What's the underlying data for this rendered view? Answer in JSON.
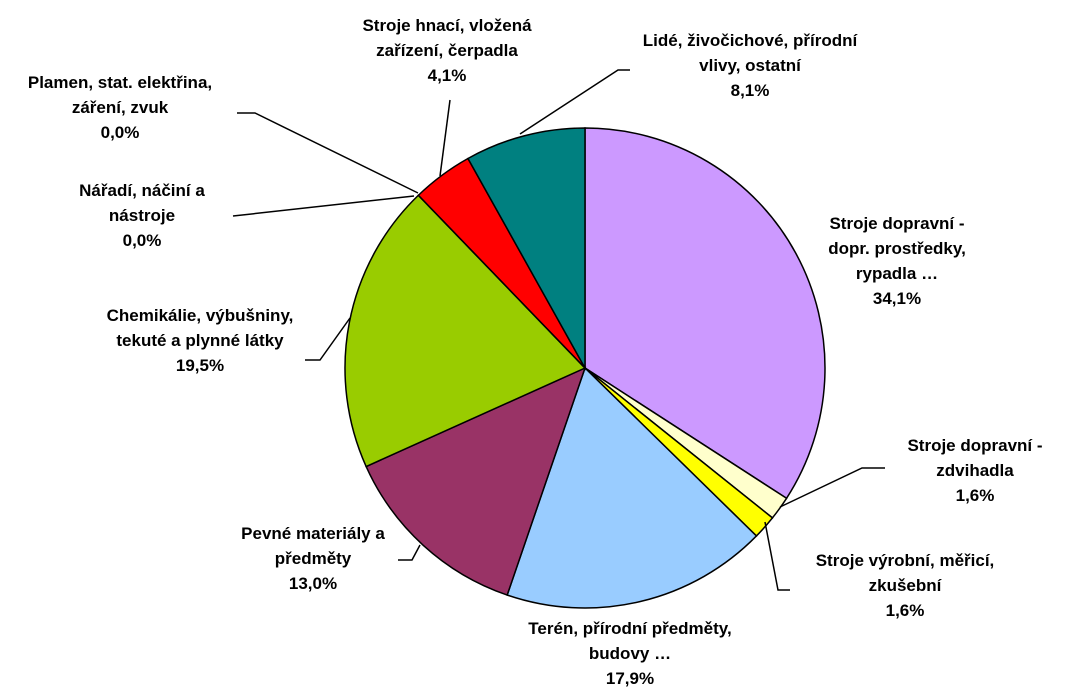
{
  "chart_data": {
    "type": "pie",
    "categories": [
      "Stroje dopravní - dopr. prostředky, rypadla …",
      "Stroje dopravní - zdvihadla",
      "Stroje výrobní, měřicí, zkušební",
      "Terén, přírodní předměty, budovy …",
      "Pevné materiály a předměty",
      "Chemikálie, výbušniny, tekuté a plynné látky",
      "Nářadí, náčiní a nástroje",
      "Plamen, stat. elektřina, záření, zvuk",
      "Stroje hnací, vložená zařízení, čerpadla",
      "Lidé, živočichové, přírodní vlivy, ostatní"
    ],
    "values": [
      34.1,
      1.6,
      1.6,
      17.9,
      13.0,
      19.5,
      0.0,
      0.0,
      4.1,
      8.1
    ],
    "value_labels": [
      "34,1%",
      "1,6%",
      "1,6%",
      "17,9%",
      "13,0%",
      "19,5%",
      "0,0%",
      "0,0%",
      "4,1%",
      "8,1%"
    ],
    "colors": [
      "#cc99ff",
      "#ffffcc",
      "#ffff00",
      "#99ccff",
      "#993366",
      "#99cc00",
      "#ff9900",
      "#3366ff",
      "#ff0000",
      "#008080"
    ]
  }
}
